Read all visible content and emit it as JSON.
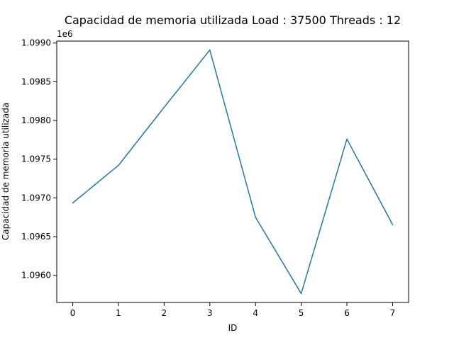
{
  "chart_data": {
    "type": "line",
    "title": "Capacidad de memoria utilizada Load : 37500 Threads : 12",
    "xlabel": "ID",
    "ylabel": "Capacidad de memoria utilizada",
    "y_offset_text": "1e6",
    "x": [
      0,
      1,
      2,
      3,
      4,
      5,
      6,
      7
    ],
    "series": [
      {
        "values": [
          1096935,
          1097420,
          1098170,
          1098910,
          1096750,
          1095765,
          1097760,
          1096655
        ]
      }
    ],
    "xlim": [
      -0.35,
      7.35
    ],
    "ylim": [
      1095650,
      1099025
    ],
    "x_ticks": [
      0,
      1,
      2,
      3,
      4,
      5,
      6,
      7
    ],
    "x_tick_labels": [
      "0",
      "1",
      "2",
      "3",
      "4",
      "5",
      "6",
      "7"
    ],
    "y_ticks": [
      1096000,
      1096500,
      1097000,
      1097500,
      1098000,
      1098500,
      1099000
    ],
    "y_tick_labels": [
      "1.0960",
      "1.0965",
      "1.0970",
      "1.0975",
      "1.0980",
      "1.0985",
      "1.0990"
    ],
    "grid": false,
    "line_color": "#1f77b4"
  }
}
